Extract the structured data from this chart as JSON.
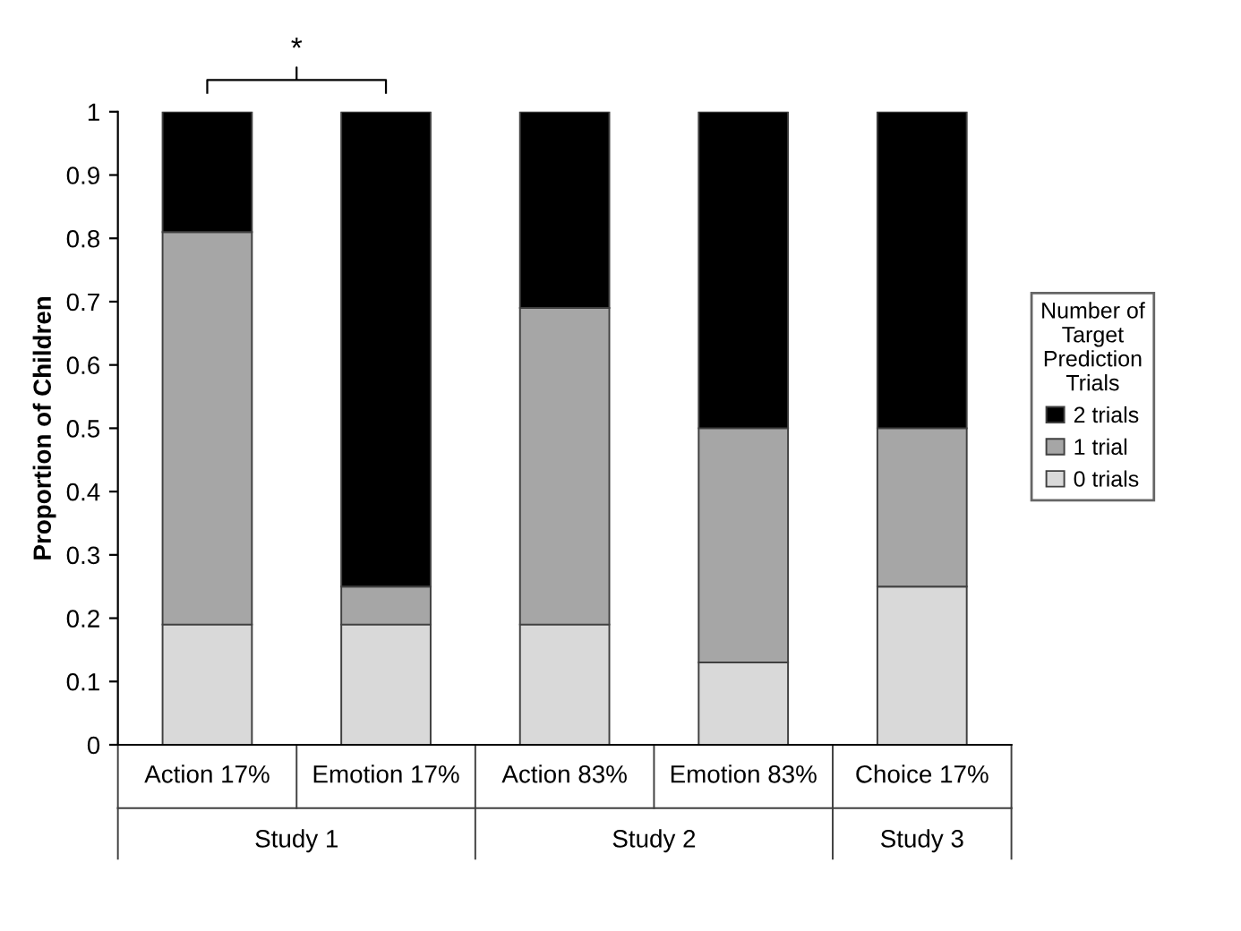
{
  "chart_data": {
    "type": "bar",
    "stacked": true,
    "ylabel": "Proportion of Children",
    "categories": [
      "Action 17%",
      "Emotion 17%",
      "Action 83%",
      "Emotion 83%",
      "Choice 17%"
    ],
    "series": [
      {
        "name": "0 trials",
        "color": "#d9d9d9",
        "values": [
          0.19,
          0.19,
          0.19,
          0.13,
          0.25
        ]
      },
      {
        "name": "1 trial",
        "color": "#a6a6a6",
        "values": [
          0.62,
          0.06,
          0.5,
          0.37,
          0.25
        ]
      },
      {
        "name": "2 trials",
        "color": "#000000",
        "values": [
          0.19,
          0.75,
          0.31,
          0.5,
          0.5
        ]
      }
    ],
    "ylim": [
      0,
      1
    ],
    "yticks": [
      0,
      0.1,
      0.2,
      0.3,
      0.4,
      0.5,
      0.6,
      0.7,
      0.8,
      0.9,
      1
    ],
    "legend": "right",
    "legend_title": "Number of Target Prediction Trials",
    "grid": false,
    "annotations": [
      "*",
      "Study 1",
      "Study 2",
      "Study 3"
    ]
  }
}
